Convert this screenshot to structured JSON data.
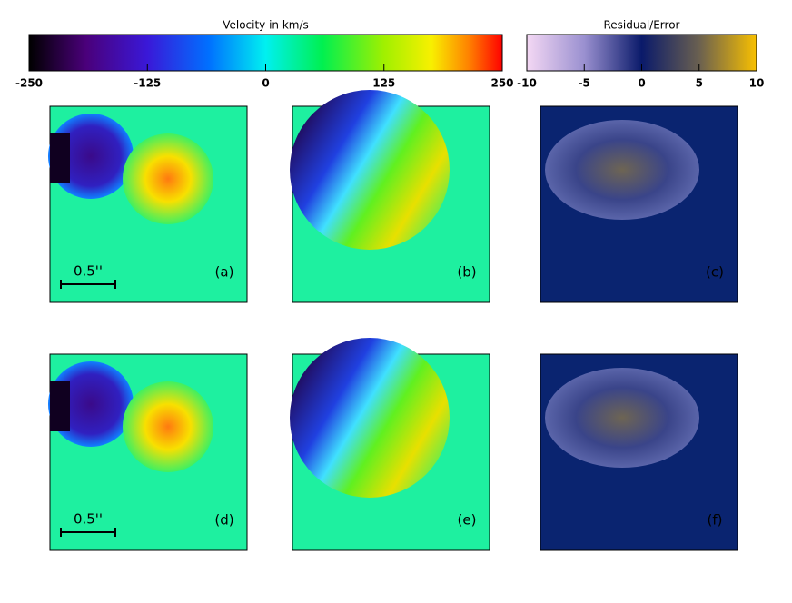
{
  "colorbars": [
    {
      "title": "Velocity in km/s",
      "lim": [
        -250,
        250
      ],
      "ticks": [
        -250,
        -125,
        0,
        125,
        250
      ]
    },
    {
      "title": "Residual/Error",
      "lim": [
        -10,
        10
      ],
      "ticks": [
        -10,
        -5,
        0,
        5,
        10
      ]
    }
  ],
  "panels": [
    {
      "label": "(a)",
      "scale_bar": "0.5''"
    },
    {
      "label": "(b)"
    },
    {
      "label": "(c)"
    },
    {
      "label": "(d)",
      "scale_bar": "0.5''"
    },
    {
      "label": "(e)"
    },
    {
      "label": "(f)"
    }
  ]
}
